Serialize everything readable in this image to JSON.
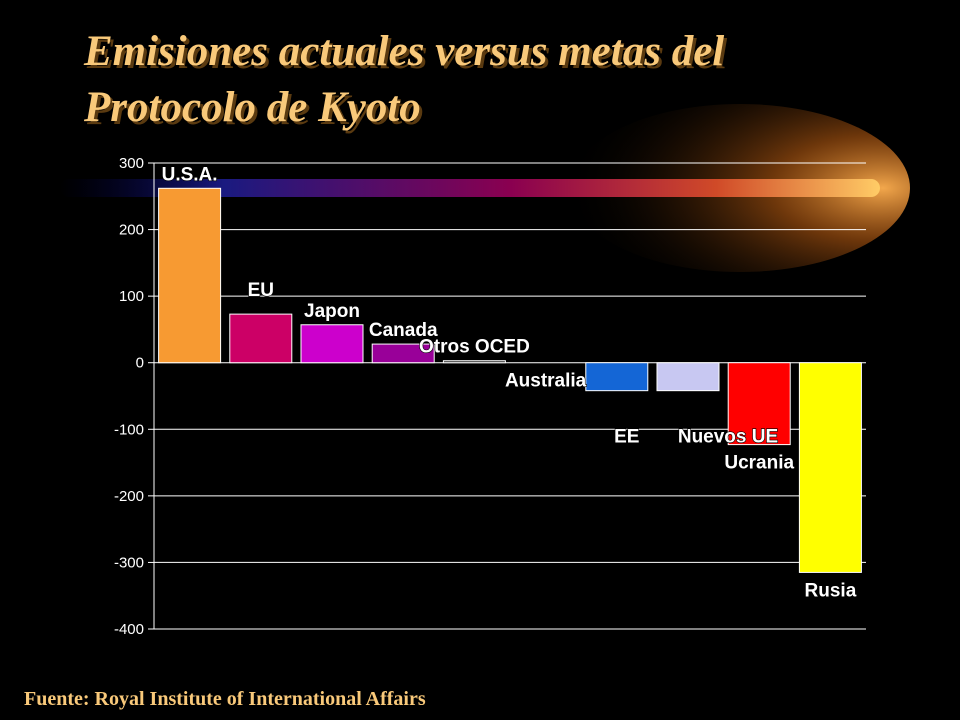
{
  "title_line1": "Emisiones actuales versus metas del",
  "title_line2": "Protocolo de Kyoto",
  "source": "Fuente: Royal Institute of  International Affairs",
  "colors": {
    "background": "#000000",
    "title": "#f9c97a",
    "gridline": "#ffffff",
    "tick_text": "#ffffff"
  },
  "chart_data": {
    "type": "bar",
    "title": "",
    "xlabel": "",
    "ylabel": "",
    "ylim": [
      -400,
      300
    ],
    "yticks": [
      300,
      200,
      100,
      0,
      -100,
      -200,
      -300,
      -400
    ],
    "grid": true,
    "categories": [
      "U.S.A.",
      "EU",
      "Japon",
      "Canada",
      "Otros OCED",
      "Australia",
      "EE",
      "Nuevos UE",
      "Ucrania",
      "Rusia"
    ],
    "values": [
      262,
      73,
      57,
      28,
      3,
      0,
      -42,
      -42,
      -123,
      -315
    ],
    "bar_colors": [
      "#f79a32",
      "#cc0066",
      "#cc00cc",
      "#990099",
      "#333333",
      "#000000",
      "#1466d6",
      "#c8c8f2",
      "#ff0000",
      "#ffff00"
    ]
  }
}
